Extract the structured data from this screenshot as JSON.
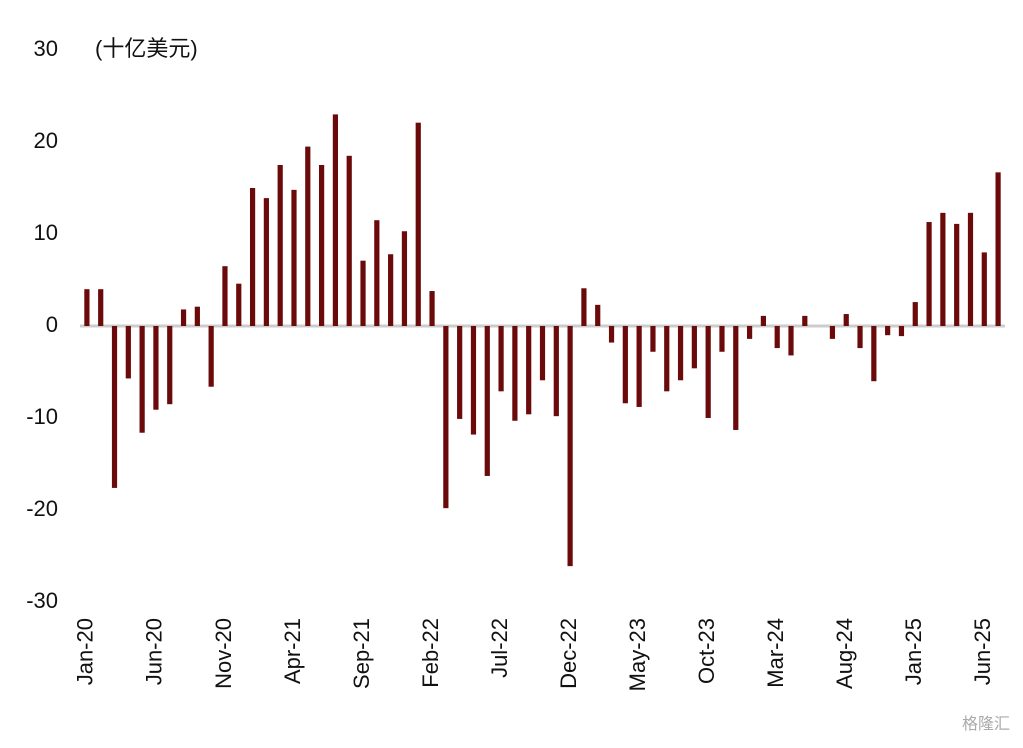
{
  "chart_data": {
    "type": "bar",
    "unit_label": "(十亿美元)",
    "watermark": "格隆汇",
    "categories": [
      "Jan-20",
      null,
      null,
      null,
      null,
      "Jun-20",
      null,
      null,
      null,
      null,
      "Nov-20",
      null,
      null,
      null,
      null,
      "Apr-21",
      null,
      null,
      null,
      null,
      "Sep-21",
      null,
      null,
      null,
      null,
      "Feb-22",
      null,
      null,
      null,
      null,
      "Jul-22",
      null,
      null,
      null,
      null,
      "Dec-22",
      null,
      null,
      null,
      null,
      "May-23",
      null,
      null,
      null,
      null,
      "Oct-23",
      null,
      null,
      null,
      null,
      "Mar-24",
      null,
      null,
      null,
      null,
      "Aug-24",
      null,
      null,
      null,
      null,
      "Jan-25",
      null,
      null,
      null,
      null,
      "Jun-25",
      null
    ],
    "values": [
      4.0,
      4.0,
      -17.6,
      -5.7,
      -11.6,
      -9.1,
      -8.5,
      1.8,
      2.1,
      -6.6,
      6.5,
      4.6,
      15.0,
      13.9,
      17.5,
      14.8,
      19.5,
      17.5,
      23.0,
      18.5,
      7.1,
      11.5,
      7.8,
      10.3,
      22.1,
      3.8,
      -19.8,
      -10.1,
      -11.8,
      -16.3,
      -7.1,
      -10.3,
      -9.6,
      -5.9,
      -9.8,
      -26.1,
      4.1,
      2.3,
      -1.8,
      -8.4,
      -8.8,
      -2.8,
      -7.1,
      -5.9,
      -4.6,
      -10.0,
      -2.8,
      -11.3,
      -1.4,
      1.1,
      -2.4,
      -3.2,
      1.1,
      0,
      -1.4,
      1.3,
      -2.4,
      -6.0,
      -1.0,
      -1.1,
      2.6,
      11.3,
      12.3,
      11.1,
      12.3,
      8.0,
      16.7
    ],
    "color": "#6b0a0a",
    "ylim": [
      -30,
      30
    ],
    "yticks": [
      -30,
      -20,
      -10,
      0,
      10,
      20,
      30
    ],
    "grid": false
  }
}
